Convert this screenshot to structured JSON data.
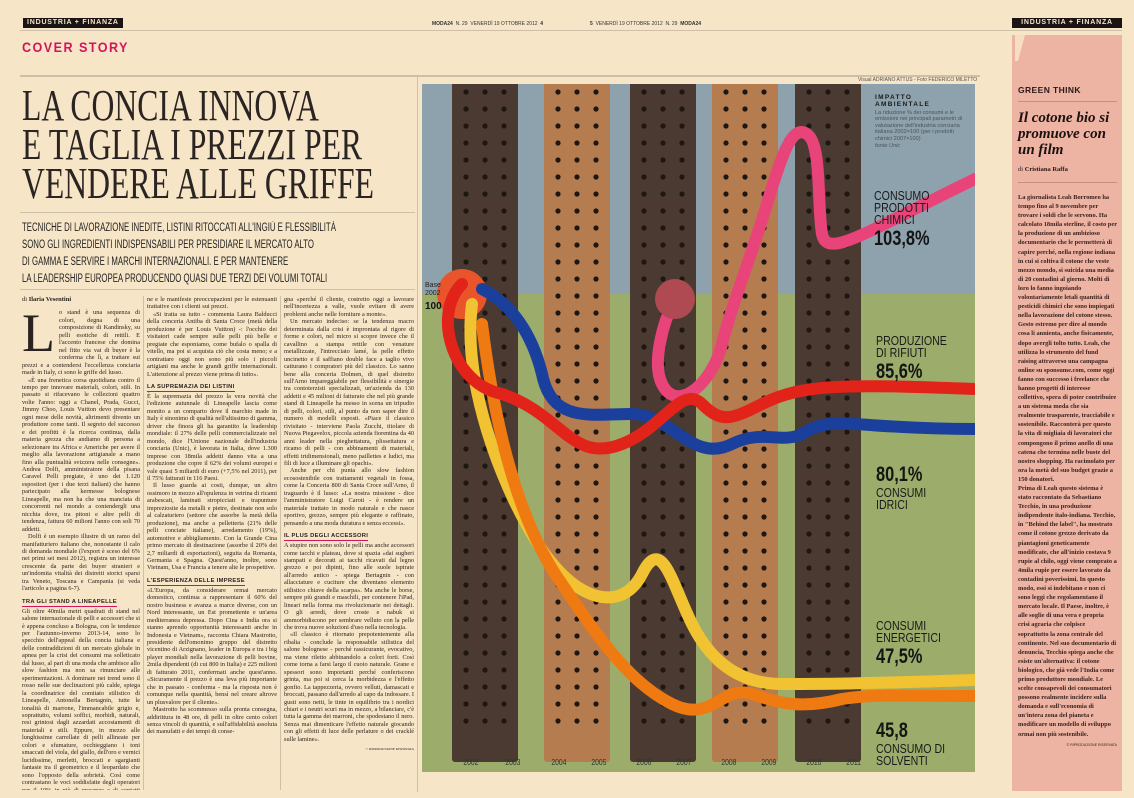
{
  "header": {
    "section_left": "INDUSTRIA + FINANZA",
    "section_right": "INDUSTRIA + FINANZA",
    "folio_left": {
      "brand": "MODA24",
      "issue": "N. 29",
      "date": "VENERDÌ 19 OTTOBRE 2012",
      "page": "4"
    },
    "folio_right": {
      "page": "5",
      "date": "VENERDÌ 19 OTTOBRE 2012",
      "issue": "N. 29",
      "brand": "MODA24"
    }
  },
  "kicker": "COVER STORY",
  "headline": [
    "LA CONCIA INNOVA",
    "E TAGLIA I PREZZI PER",
    "VENDERE ALLE GRIFFE"
  ],
  "subtitle": [
    "TECNICHE DI LAVORAZIONE INEDITE, LISTINI RITOCCATI ALL'INGIÙ E FLESSIBILITÀ",
    "SONO GLI INGREDIENTI INDISPENSABILI PER PRESIDIARE IL MERCATO ALTO",
    "DI GAMMA E SERVIRE I MARCHI INTERNAZIONALI. E PER MANTENERE",
    "LA LEADERSHIP EUROPEA PRODUCENDO QUASI DUE TERZI DEI VOLUMI TOTALI"
  ],
  "article": {
    "byline_prefix": "di",
    "author": "Ilaria Vesentini",
    "dropcap": "L",
    "col1": {
      "p1": "o stand è una sequenza di colori, degna di una composizione di Kandinsky, su pelli esotiche di rettili. E l'accento francese che domina nel fitto via vai di buyer è la conferma che lì, a trattare sui prezzi e a contendersi l'eccellenza conciaria made in Italy, ci sono le griffe del lusso.",
      "p2": "«È una frenetica corsa quotidiana contro il tempo per innovare materiali, colori, stili. In passato si rifacevano le collezioni quattro volte l'anno: oggi a Chanel, Prada, Gucci, Jimmy Choo, Louis Vuitton devo presentare ogni mese delle novità, altrimenti divento un produttore come tanti. Il segreto del successo e dei profitti è la ricerca continua, dalla materia grezza che andiamo di persona a selezionare tra Africa e Americhe per avere il meglio alla lavorazione artigianale a mano fino alla puntualità svizzera nelle consegne». Andrea Dolfi, amministratore della pisana Caravel Pelli pregiate, è uno dei 1.120 espositori (per i due terzi italiani) che hanno partecipato alla kermesse bolognese Lineapelle, ma non ha che una manciata di concorrenti nel mondo a contendergli una nicchia dove, tra pitoni e altre pelli di tendenza, fattura 60 milioni l'anno con soli 70 addetti.",
      "p3": "Dolfi è un esempio illustre di un ramo del manifatturiero italiano che, nonostante il calo di domanda mondiale (l'export è sceso del 6% nei primi sei mesi 2012), registra un interesse crescente da parte dei buyer stranieri e un'indomita vitalità dei distretti storici sparsi tra Veneto, Toscana e Campania (si veda l'articolo a pagina 6-7).",
      "h1": "TRA GLI STAND A LINEAPELLE",
      "p4": "Gli oltre 40mila metri quadrati di stand nel salone internazionale di pelli e accessori che si è appena concluso a Bologna, con le tendenze per l'autunno-inverno 2013-14, sono lo specchio dell'appeal della concia italiana e delle contraddizioni di un mercato globale in apnea per la crisi dei consumi ma solleticato dal lusso, al pari di una moda che ambisce allo slow fashion ma non sa rinunciare alle sperimentazioni. A dominare nei trend sono il rosso nelle sue declinazioni più calde, spiega la coordinatrice del comitato stilistico di Lineapelle, Antonella Bertagnin, tutte le tonalità di marrone, l'immancabile grigio e, soprattutto, volumi soffici, morbidi, naturali, resi grintosi dagli azzardati accostamenti di materiali e stili. Eppure, in mezzo alle lunghissime carrellate di pelli allineate per colori e sfumature, occhieggiano i toni smaccati del viola, del giallo, dell'oro e vernici lucidissime, merletti, broccati e sgargianti fantasie tra il geometrico e il leopardato che sono l'opposto della sobrietà. Così come contrastano le voci soddisfatte degli operatori per il 10% in più di presenze e di contatti raccolti in fiera rispetto all'edizione primaverile del salo-"
    },
    "col2": {
      "p1": "ne e le manifeste preoccupazioni per le estenuanti trattative con i clienti sui prezzi.",
      "p2": "«Si tratta su tutto - commenta Laura Balducci della conceria Antiba di Santa Croce (metà della produzione è per Louis Vuitton) -: l'occhio dei visitatori cade sempre sulle pelli più belle e pregiate che esponiamo, come bufalo o spalla di vitello, ma poi si acquista ciò che costa meno; e a contrattare oggi non sono più solo i piccoli artigiani ma anche le grandi griffe internazionali. L'attenzione al prezzo viene prima di tutto».",
      "h1": "LA SUPREMAZIA DEI LISTINI",
      "p3": "È la supremazia del prezzo la vera novità che l'edizione autunnale di Lineapelle lascia come monito a un comparto dove il marchio made in Italy è sinonimo di qualità nell'altissimo di gamma, driver che finora gli ha garantito la leadership mondiale: il 27% delle pelli commercializzate nel mondo, dice l'Unione nazionale dell'industria conciaria (Unic), è lavorata in Italia, dove 1.300 imprese con 18mila addetti danno vita a una produzione che copre il 62% dei volumi europei e vale quasi 5 miliardi di euro (+7,5% nel 2011), per il 75% fatturati in 116 Paesi.",
      "p4": "Il lusso guarda ai costi, dunque, un altro ossimoro in mezzo all'opulenza in vetrina di ricami arabescati, laminati stropicciati e trapunture impreziosite da metalli e pietre, destinate non solo al calzaturiero (settore che assorbe la metà della produzione), ma anche a pelletteria (21% delle pelli conciate italiane), arredamento (19%), automotive e abbigliamento. Con la Grande Cina primo mercato di destinazione (assorbe il 20% dei 2,7 miliardi di esportazioni), seguita da Romania, Germania e Spagna. Quest'anno, inoltre, sono Vietnam, Usa e Francia a tenere alte le prospettive.",
      "h2": "L'ESPERIENZA DELLE IMPRESE",
      "p5": "«L'Europa, da considerare ormai mercato domestico, continua a rappresentare il 60% del nostro business e avanza a marce diverse, con un Nord interessante, un Est promettente e un'area mediterranea depressa. Dopo Cina e India ora si stanno aprendo opportunità interessanti anche in Indonesia e Vietnam», racconta Chiara Mastrotto, presidente dell'omonimo gruppo del distretto vicentino di Arzignano, leader in Europa e tra i big player mondiali nella lavorazione di pelli bovine, 2mila dipendenti (di cui 800 in Italia) e 225 milioni di fatturato 2011, confermati anche quest'anno. «Sicuramente il prezzo è una leva più importante che in passato - conferma - ma la risposta non è comunque nella quantità, bensì nel creare altrove un plusvalore per il cliente».",
      "p6": "Mastrotto ha scommesso sulla pronta consegna, addirittura in 48 ore, di pelli in oltre cento colori senza vincoli di quantità, e sull'affidabilità assoluta dei manufatti e dei tempi di conse-"
    },
    "col3": {
      "p1": "gna «perché il cliente, costretto oggi a lavorare nell'incertezza a valle, vuole evitare di avere problemi anche nelle forniture a monte».",
      "p2": "Un mercato indeciso: se la tendenza macro determinata dalla crisi è improntata al rigore di forme e colori, nel micro si scopre invece che il cavallino a stampa rettile con venature metallizzate, l'intrecciato lamé, la pelle effetto uncinetto e il saffiano double face a taglio vivo catturano i compratori più del classico. Lo sanno bene alla conceria Dolmen, di quel distretto sull'Arno impareggiabile per flessibilità e sinergie tra contoterzisti specializzati, un'azienda da 130 addetti e 45 milioni di fatturato che nel più grande stand di Lineapelle ha messo in scena un tripudio di pelli, colori, stili, al punto da non saper dire il numero di modelli esposti. «Piace il classico rivisitato - interviene Paola Zucchi, titolare di Nuova Piegavelox, piccola azienda fiorentina da 40 anni leader nella pieghettatura, plissettatura e ricamo di pelli - con abbinamenti di materiali, effetti tridimensionali, meno paillettes e ludici, ma fili di luce a illuminare gli opachi».",
      "p3": "Anche per chi punta allo slow fashion ecosostenibile con trattamenti vegetali in fossa, come la Conceria 800 di Santa Croce sull'Arno, il traguardo è il lusso: «La nostra missione - dice l'amministratore Luigi Caroti - è rendere un materiale trattato in modo naturale e che nasce sportivo, grezzo, sempre più elegante e raffinato, pensando a una moda duratura e senza eccessi».",
      "h1": "IL PLUS DEGLI ACCESSORI",
      "p4": "A stupire non sono solo le pelli ma anche accessori come tacchi e plateau, dove si spazia «dai sugheri stampati e decorati ai tacchi ricavati dal legno grezzo e poi dipinti, fino alle suole ispirate all'arredo antico - spiega Bertagnin - con allacciature e cuciture che diventano elemento stilistico chiave della scarpa». Ma anche le borse, sempre più grandi e maschili, per contenere l'iPad, lineari nella forma ma rivoluzionarie nei dettagli. O gli arredi, dove croste e nabuk si ammorbidiscono per sembrare velluto con la pelle che trova nuove soluzioni d'uso nella tecnologia.",
      "p5": "«Il classico è ritornato prepotentemente alla ribalta - conclude la responsabile stilistica del salone bolognese - perché rassicurante, evocativo, ma viene riletto abbinandolo a colori forti. Così come torna a farsi largo il cuoio naturale. Grane e spessori sono importanti perché conferiscono grinta, ma poi si cerca la morbidezza e l'effetto gonfio. La tappezzeria, ovvero velluti, damascati e broccati, passano dall'arredo al capo da indossare. I gusti sono netti, le tinte in equilibrio tra i nordici chiari e i neutri scuri ma in mezzo, a bilanciare, c'è tutta la gamma dei marroni, che spodestano il nero. Senza mai dimenticare l'effetto naturale giocando con gli effetti di luce delle perlature o dei cracklé sulle lamine».",
      "copyright": "© RIPRODUZIONE RISERVATA"
    }
  },
  "infographic": {
    "credit": "Visual ADRIANO ATTUS - Foto FEDERICO MILETTO",
    "box_title": [
      "IMPATTO",
      "AMBIENTALE"
    ],
    "box_text": "La riduzione % dei consumi e le emissioni nei principali parametri di valutazione dell'industria conciaria italiana 2002=100 (per i prodotti chimici 2007=100)",
    "source": "fonte Unic",
    "base_label": [
      "Base",
      "2002"
    ],
    "base_value": "100",
    "colors": {
      "top_bg": "#8ea2ad",
      "bottom_bg": "#9cad6b",
      "strap_dark": "#4a3a31",
      "strap_tan": "#b47c4f"
    }
  },
  "chart_data": {
    "type": "line",
    "title": "IMPATTO AMBIENTALE",
    "categories": [
      "2002",
      "2003",
      "2004",
      "2005",
      "2006",
      "2007",
      "2008",
      "2009",
      "2010",
      "2011"
    ],
    "base": 100,
    "series": [
      {
        "name": "CONSUMO PRODOTTI CHIMICI",
        "end_value": "103,8%",
        "color": "#e8447a"
      },
      {
        "name": "PRODUZIONE DI RIFIUTI",
        "end_value": "85,6%",
        "color": "#e2231a"
      },
      {
        "name": "CONSUMI IDRICI",
        "end_value": "80,1%",
        "color": "#1a3f9c"
      },
      {
        "name": "CONSUMI ENERGETICI",
        "end_value": "47,5%",
        "color": "#f1c232"
      },
      {
        "name": "CONSUMO DI SOLVENTI",
        "end_value": "45,8",
        "color": "#f07a12"
      }
    ]
  },
  "sidebar": {
    "kicker": "GREEN THINK",
    "title": "Il cotone bio si promuove con un film",
    "byline_prefix": "di",
    "author": "Cristiana Raffa",
    "body": "La giornalista Leah Borromeo ha tempo fino al 9 novembre per trovare i soldi che le servono. Ha calcolato 18mila sterline, il costo per la produzione di un ambizioso documentario che le permetterà di capire perché, nella regione indiana in cui si coltiva il cotone che veste mezzo mondo, si suicida una media di 20 contadini al giorno. Molti di loro lo fanno ingoiando volontariamente letali quantità di pesticidi chimici che sono impiegati nella lavorazione del cotone stesso. Gesto estremo per dire al mondo cosa li annienta, anche fisicamente, dopo avergli tolto tutto. Leah, che utilizza lo strumento del fund raising attraverso una campagna online su sponsume.com, come oggi fanno con successo i freelance che hanno progetti di interesse collettivo, spera di poter contribuire a un sistema moda che sia realmente trasparente, tracciabile e sostenibile. Racconterà per questo la vita di migliaia di lavoratori che compongono il primo anello di una catena che termina nelle buste del nostro shopping. Ha racimolato per ora la metà del suo budget grazie a 150 donatori.",
    "body2": "Prima di Leah questo sistema è stato raccontato da Sebastiano Tecchio, in una produzione indipendente italo-indiana. Tecchio, in \"Behind the label\", ha mostrato come il cotone grezzo derivato da piantagioni geneticamente modificate, che all'inizio costava 9 rupie al chilo, oggi viene comprato a 4mila rupie per essere lavorato da contadini poverissimi. In questo modo, essi si indebitano e non ci sono leggi che regolamentano il mercato locale. Il Paese, inoltre, è alle soglie di una vera e propria crisi agraria che colpisce soprattutto la zona centrale del continente. Nel suo documentario di denuncia, Tecchio spiega anche che esiste un'alternativa: il cotone biologico, che già vede l'India come primo produttore mondiale. Le scelte consapevoli dei consumatori possono realmente incidere sulla domanda e sull'economia di un'intera zona del pianeta e modificare un modello di sviluppo ormai non più sostenibile.",
    "copyright": "© RIPRODUZIONE RISERVATA",
    "accent": "#edb3a3"
  }
}
